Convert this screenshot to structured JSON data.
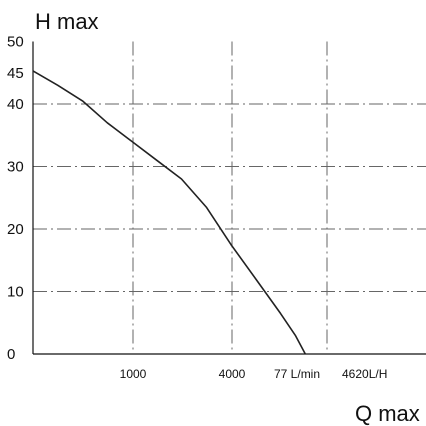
{
  "chart_data": {
    "type": "line",
    "title": "",
    "ylabel": "H max",
    "xlabel": "Q max",
    "y_ticks": [
      "0",
      "10",
      "20",
      "30",
      "40",
      "45",
      "50"
    ],
    "x_ticks": [
      "1000",
      "4000",
      "77 L/min",
      "4620L/H"
    ],
    "ylim": [
      0,
      50
    ],
    "grid": true,
    "series": [
      {
        "name": "",
        "color": "#222222",
        "points": [
          [
            0,
            45.3
          ],
          [
            0.5,
            43
          ],
          [
            1.0,
            40.5
          ],
          [
            1.5,
            37
          ],
          [
            2.0,
            34
          ],
          [
            2.5,
            31
          ],
          [
            3.0,
            28
          ],
          [
            3.5,
            23.5
          ],
          [
            4.0,
            17.5
          ],
          [
            4.5,
            12
          ],
          [
            5.0,
            6.5
          ],
          [
            5.3,
            3
          ],
          [
            5.5,
            0
          ]
        ]
      }
    ]
  }
}
